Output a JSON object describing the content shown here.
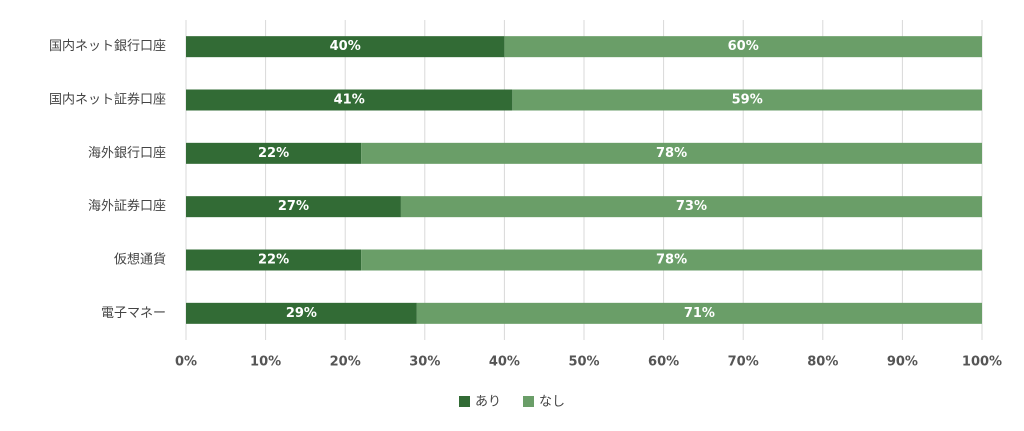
{
  "chart_data": {
    "type": "stacked-bar-horizontal",
    "categories": [
      "国内ネット銀行口座",
      "国内ネット証券口座",
      "海外銀行口座",
      "海外証券口座",
      "仮想通貨",
      "電子マネー"
    ],
    "series": [
      {
        "name": "あり",
        "color": "#326b35",
        "values": [
          40,
          41,
          22,
          27,
          22,
          29
        ],
        "value_labels": [
          "40%",
          "41%",
          "22%",
          "27%",
          "22%",
          "29%"
        ]
      },
      {
        "name": "なし",
        "color": "#6a9e68",
        "values": [
          60,
          59,
          78,
          73,
          78,
          71
        ],
        "value_labels": [
          "60%",
          "59%",
          "78%",
          "73%",
          "78%",
          "71%"
        ]
      }
    ],
    "xlim": [
      0,
      100
    ],
    "xticks": [
      {
        "value": 0,
        "label": "0%"
      },
      {
        "value": 10,
        "label": "10%"
      },
      {
        "value": 20,
        "label": "20%"
      },
      {
        "value": 30,
        "label": "30%"
      },
      {
        "value": 40,
        "label": "40%"
      },
      {
        "value": 50,
        "label": "50%"
      },
      {
        "value": 60,
        "label": "60%"
      },
      {
        "value": 70,
        "label": "70%"
      },
      {
        "value": 80,
        "label": "80%"
      },
      {
        "value": 90,
        "label": "90%"
      },
      {
        "value": 100,
        "label": "100%"
      }
    ],
    "grid": true,
    "legend": "bottom"
  }
}
